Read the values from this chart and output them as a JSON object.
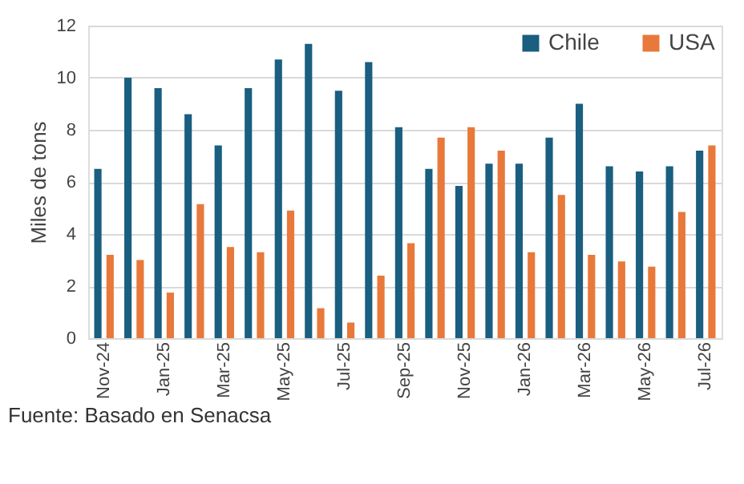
{
  "chart_data": {
    "type": "bar",
    "ylabel": "Miles de tons",
    "categories": [
      "Nov-24",
      null,
      "Jan-25",
      null,
      "Mar-25",
      null,
      "May-25",
      null,
      "Jul-25",
      null,
      "Sep-25",
      null,
      "Nov-25",
      null,
      "Jan-26",
      null,
      "Mar-26",
      null,
      "May-26",
      null,
      "Jul-26"
    ],
    "series": [
      {
        "name": "Chile",
        "color": "#1a5e80",
        "values": [
          6.5,
          10.0,
          9.6,
          8.6,
          7.4,
          9.6,
          10.7,
          11.3,
          9.5,
          10.6,
          8.1,
          6.5,
          5.85,
          6.7,
          6.7,
          7.7,
          9.0,
          6.6,
          6.4,
          6.6,
          7.2
        ]
      },
      {
        "name": "USA",
        "color": "#e8793a",
        "values": [
          3.2,
          3.0,
          1.75,
          5.15,
          3.5,
          3.3,
          4.9,
          1.15,
          0.6,
          2.4,
          3.65,
          7.7,
          8.1,
          7.2,
          3.3,
          5.5,
          3.2,
          2.95,
          2.75,
          4.85,
          7.4
        ]
      }
    ],
    "ylim": [
      0,
      12
    ],
    "yticks": [
      0,
      2,
      4,
      6,
      8,
      10,
      12
    ],
    "grid": "y",
    "legend": "top right",
    "annotations": [
      "Fuente: Basado en Senacsa"
    ]
  }
}
